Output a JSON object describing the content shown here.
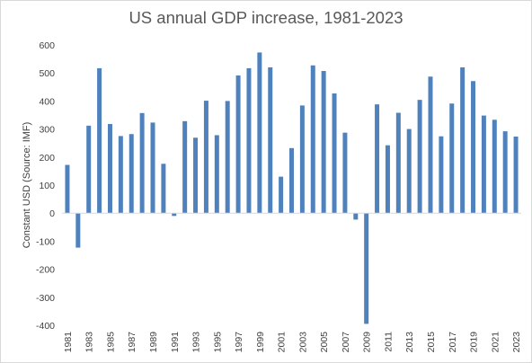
{
  "chart_data": {
    "type": "bar",
    "title": "US annual GDP increase, 1981-2023",
    "xlabel": "",
    "ylabel": "Constant USD (Source: IMF)",
    "ylim": [
      -400,
      600
    ],
    "yticks": [
      600,
      500,
      400,
      300,
      200,
      100,
      0,
      -100,
      -200,
      -300,
      -400
    ],
    "grid": false,
    "legend": "none",
    "bar_color": "#4f81bd",
    "categories": [
      "1981",
      "1982",
      "1983",
      "1984",
      "1985",
      "1986",
      "1987",
      "1988",
      "1989",
      "1990",
      "1991",
      "1992",
      "1993",
      "1994",
      "1995",
      "1996",
      "1997",
      "1998",
      "1999",
      "2000",
      "2001",
      "2002",
      "2003",
      "2004",
      "2005",
      "2006",
      "2007",
      "2008",
      "2009",
      "2010",
      "2011",
      "2012",
      "2013",
      "2014",
      "2015",
      "2016",
      "2017",
      "2018",
      "2019",
      "2020",
      "2021",
      "2022",
      "2023"
    ],
    "xtick_labels": [
      "1981",
      "1983",
      "1985",
      "1987",
      "1989",
      "1991",
      "1993",
      "1995",
      "1997",
      "1999",
      "2001",
      "2003",
      "2005",
      "2007",
      "2009",
      "2011",
      "2013",
      "2015",
      "2017",
      "2019",
      "2021",
      "2023"
    ],
    "values": [
      172,
      -123,
      312,
      517,
      318,
      275,
      282,
      357,
      323,
      176,
      -10,
      328,
      269,
      401,
      278,
      400,
      491,
      517,
      573,
      520,
      130,
      232,
      384,
      527,
      507,
      427,
      287,
      -23,
      -395,
      388,
      242,
      358,
      300,
      404,
      487,
      274,
      391,
      520,
      471,
      348,
      333,
      292,
      273
    ]
  }
}
